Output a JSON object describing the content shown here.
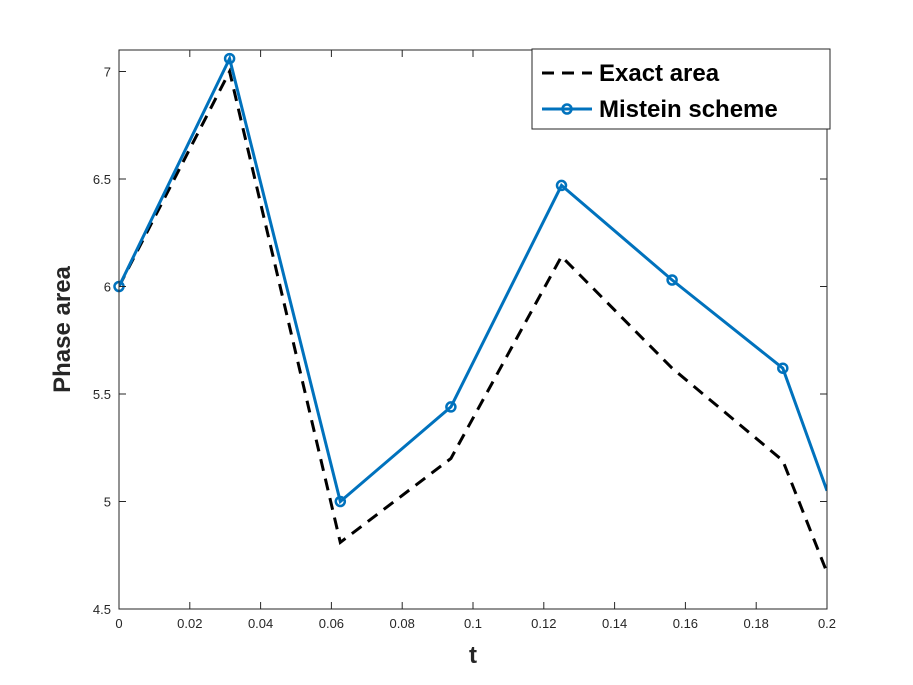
{
  "chart_data": {
    "type": "line",
    "title": "",
    "xlabel": "t",
    "ylabel": "Phase area",
    "xlim": [
      0,
      0.2
    ],
    "ylim": [
      4.5,
      7.1
    ],
    "xticks": [
      0,
      0.02,
      0.04,
      0.06,
      0.08,
      0.1,
      0.12,
      0.14,
      0.16,
      0.18,
      0.2
    ],
    "xtick_labels": [
      "0",
      "0.02",
      "0.04",
      "0.06",
      "0.08",
      "0.1",
      "0.12",
      "0.14",
      "0.16",
      "0.18",
      "0.2"
    ],
    "yticks": [
      4.5,
      5,
      5.5,
      6,
      6.5,
      7
    ],
    "ytick_labels": [
      "4.5",
      "5",
      "5.5",
      "6",
      "6.5",
      "7"
    ],
    "grid": false,
    "legend_position": "top-right",
    "series": [
      {
        "name": "Exact area",
        "color": "#000000",
        "style": "dashed",
        "marker": "none",
        "x": [
          0,
          0.03125,
          0.0625,
          0.09375,
          0.125,
          0.15625,
          0.1875,
          0.2
        ],
        "y": [
          6.0,
          7.0,
          4.81,
          5.2,
          6.14,
          5.62,
          5.19,
          4.67
        ]
      },
      {
        "name": "Mistein scheme",
        "color": "#0072BD",
        "style": "solid",
        "marker": "circle",
        "x": [
          0,
          0.03125,
          0.0625,
          0.09375,
          0.125,
          0.15625,
          0.1875,
          0.2
        ],
        "y": [
          6.0,
          7.06,
          5.0,
          5.44,
          6.47,
          6.03,
          5.62,
          5.05
        ],
        "marker_count": 7
      }
    ]
  }
}
